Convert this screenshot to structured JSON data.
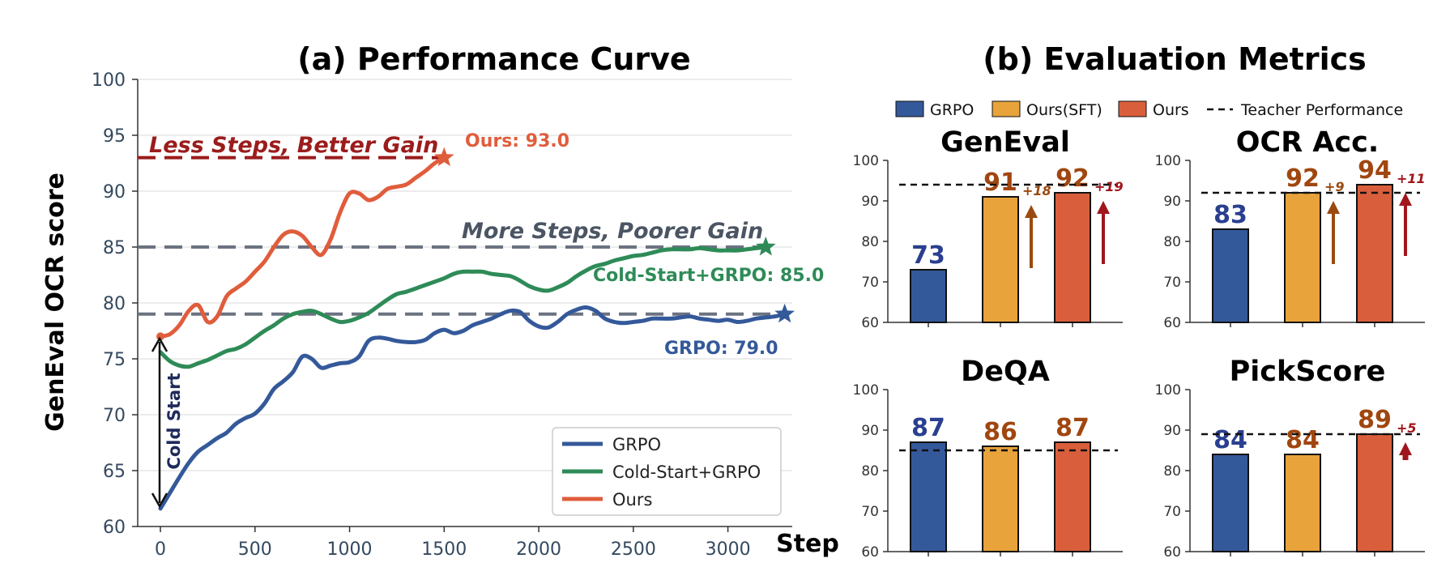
{
  "figure": {
    "left_title": "(a) Performance Curve",
    "right_title": "(b) Evaluation Metrics",
    "y_axis_label": "GenEval OCR score",
    "x_axis_label": "Step"
  },
  "annotations": {
    "less_steps": "Less Steps, Better Gain",
    "more_steps": "More Steps, Poorer Gain",
    "ours_end": "Ours: 93.0",
    "coldstart_end": "Cold-Start+GRPO: 85.0",
    "grpo_end": "GRPO: 79.0",
    "cold_start": "Cold Start"
  },
  "colors": {
    "grpo": "#34599a",
    "cold": "#2e8b57",
    "ours": "#e05d3c",
    "dashed_dark_red": "#9b1c1c",
    "dashed_gray": "#6b7280",
    "bar_grpo": "#34599a",
    "bar_sft": "#e8a33a",
    "bar_ours": "#d95f3c",
    "label_grpo": "#2a3f8f",
    "label_orange": "#a0460f",
    "gain_red": "#a0161c",
    "gain_brown": "#9a4a10"
  },
  "chart_data": [
    {
      "type": "line",
      "title": "(a) Performance Curve",
      "xlabel": "Step",
      "ylabel": "GenEval OCR score",
      "xlim": [
        -120,
        3340
      ],
      "ylim": [
        60,
        100
      ],
      "xticks": [
        0,
        500,
        1000,
        1500,
        2000,
        2500,
        3000
      ],
      "yticks": [
        60,
        65,
        70,
        75,
        80,
        85,
        90,
        95,
        100
      ],
      "grid": "horizontal",
      "legend": "bottom-right",
      "reference_lines": [
        {
          "y": 93,
          "x_range": [
            -120,
            1500
          ],
          "style": "dashed",
          "color": "#9b1c1c"
        },
        {
          "y": 85,
          "x_range": [
            -120,
            3250
          ],
          "style": "dashed",
          "color": "#6b7280"
        },
        {
          "y": 79,
          "x_range": [
            -120,
            3320
          ],
          "style": "dashed",
          "color": "#6b7280"
        }
      ],
      "series": [
        {
          "name": "GRPO",
          "color": "#34599a",
          "x": [
            0,
            50,
            100,
            150,
            200,
            250,
            300,
            350,
            400,
            450,
            500,
            550,
            600,
            650,
            700,
            750,
            800,
            850,
            900,
            950,
            1000,
            1050,
            1100,
            1150,
            1200,
            1250,
            1300,
            1350,
            1400,
            1450,
            1500,
            1550,
            1600,
            1650,
            1700,
            1750,
            1800,
            1850,
            1900,
            1950,
            2000,
            2050,
            2100,
            2150,
            2200,
            2250,
            2300,
            2350,
            2400,
            2450,
            2500,
            2550,
            2600,
            2650,
            2700,
            2750,
            2800,
            2850,
            2900,
            2950,
            3000,
            3050,
            3100,
            3150,
            3200,
            3250,
            3300
          ],
          "y": [
            61.6,
            63.0,
            64.4,
            65.7,
            66.7,
            67.3,
            67.9,
            68.4,
            69.2,
            69.7,
            70.1,
            71.0,
            72.3,
            73.0,
            73.8,
            75.2,
            75.0,
            74.2,
            74.4,
            74.6,
            74.7,
            75.2,
            76.6,
            76.9,
            76.8,
            76.6,
            76.5,
            76.5,
            76.7,
            77.3,
            77.6,
            77.3,
            77.5,
            78.0,
            78.3,
            78.6,
            79.0,
            79.3,
            79.2,
            78.4,
            77.9,
            77.8,
            78.3,
            79.0,
            79.4,
            79.6,
            79.3,
            78.6,
            78.3,
            78.2,
            78.3,
            78.4,
            78.6,
            78.6,
            78.6,
            78.7,
            78.8,
            78.6,
            78.5,
            78.4,
            78.5,
            78.3,
            78.4,
            78.6,
            78.7,
            78.8,
            79.0
          ]
        },
        {
          "name": "Cold-Start+GRPO",
          "color": "#2e8b57",
          "x": [
            0,
            50,
            100,
            150,
            200,
            250,
            300,
            350,
            400,
            450,
            500,
            550,
            600,
            650,
            700,
            750,
            800,
            850,
            900,
            950,
            1000,
            1050,
            1100,
            1150,
            1200,
            1250,
            1300,
            1350,
            1400,
            1450,
            1500,
            1550,
            1600,
            1650,
            1700,
            1750,
            1800,
            1850,
            1900,
            1950,
            2000,
            2050,
            2100,
            2150,
            2200,
            2250,
            2300,
            2350,
            2400,
            2450,
            2500,
            2550,
            2600,
            2650,
            2700,
            2750,
            2800,
            2850,
            2900,
            2950,
            3000,
            3050,
            3100,
            3150,
            3200
          ],
          "y": [
            75.6,
            74.8,
            74.4,
            74.3,
            74.6,
            74.9,
            75.3,
            75.7,
            75.9,
            76.3,
            76.9,
            77.5,
            78.0,
            78.6,
            79.0,
            79.2,
            79.3,
            79.0,
            78.6,
            78.3,
            78.4,
            78.7,
            79.1,
            79.7,
            80.3,
            80.8,
            81.0,
            81.3,
            81.6,
            81.9,
            82.2,
            82.6,
            82.8,
            82.8,
            82.8,
            82.6,
            82.5,
            82.4,
            82.0,
            81.5,
            81.2,
            81.1,
            81.4,
            81.8,
            82.4,
            82.9,
            83.3,
            83.5,
            83.8,
            84.0,
            84.2,
            84.3,
            84.5,
            84.7,
            84.8,
            84.8,
            84.8,
            84.9,
            84.8,
            84.7,
            84.7,
            84.7,
            84.8,
            84.9,
            85.0
          ]
        },
        {
          "name": "Ours",
          "color": "#e05d3c",
          "x": [
            0,
            50,
            100,
            150,
            200,
            250,
            300,
            350,
            400,
            450,
            500,
            550,
            600,
            650,
            700,
            750,
            800,
            850,
            900,
            950,
            1000,
            1050,
            1100,
            1150,
            1200,
            1250,
            1300,
            1350,
            1400,
            1450,
            1500
          ],
          "y": [
            77.0,
            77.2,
            78.0,
            79.3,
            79.8,
            78.3,
            78.8,
            80.6,
            81.3,
            81.9,
            82.8,
            83.7,
            85.0,
            86.1,
            86.4,
            86.0,
            85.0,
            84.3,
            85.7,
            88.1,
            89.8,
            89.8,
            89.2,
            89.5,
            90.2,
            90.4,
            90.6,
            91.2,
            91.8,
            92.5,
            93.0
          ]
        }
      ]
    },
    {
      "type": "bar",
      "title": "GenEval",
      "categories": [
        "GRPO",
        "Ours(SFT)",
        "Ours"
      ],
      "values": [
        73,
        91,
        92
      ],
      "ylim": [
        60,
        100
      ],
      "yticks": [
        60,
        70,
        80,
        90,
        100
      ],
      "teacher_performance": 94,
      "gains": [
        "",
        "+18",
        "+19"
      ]
    },
    {
      "type": "bar",
      "title": "OCR Acc.",
      "categories": [
        "GRPO",
        "Ours(SFT)",
        "Ours"
      ],
      "values": [
        83,
        92,
        94
      ],
      "ylim": [
        60,
        100
      ],
      "yticks": [
        60,
        70,
        80,
        90,
        100
      ],
      "teacher_performance": 92,
      "gains": [
        "",
        "+9",
        "+11"
      ]
    },
    {
      "type": "bar",
      "title": "DeQA",
      "categories": [
        "GRPO",
        "Ours(SFT)",
        "Ours"
      ],
      "values": [
        87,
        86,
        87
      ],
      "ylim": [
        60,
        100
      ],
      "yticks": [
        60,
        70,
        80,
        90,
        100
      ],
      "teacher_performance": 85,
      "gains": [
        "",
        "",
        ""
      ]
    },
    {
      "type": "bar",
      "title": "PickScore",
      "categories": [
        "GRPO",
        "Ours(SFT)",
        "Ours"
      ],
      "values": [
        84,
        84,
        89
      ],
      "ylim": [
        60,
        100
      ],
      "yticks": [
        60,
        70,
        80,
        90,
        100
      ],
      "teacher_performance": 89,
      "gains": [
        "",
        "",
        "+5"
      ]
    }
  ],
  "bar_legend": {
    "position": "top",
    "entries": [
      "GRPO",
      "Ours(SFT)",
      "Ours",
      "Teacher Performance"
    ]
  }
}
